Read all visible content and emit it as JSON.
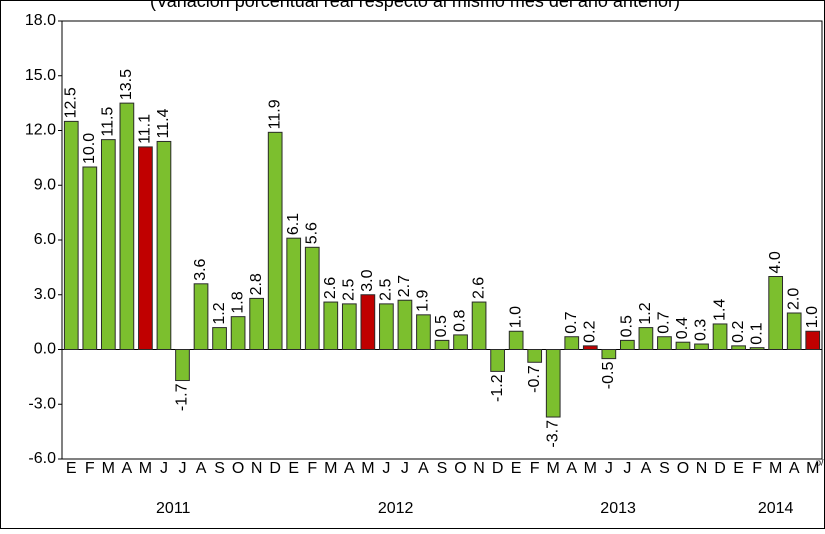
{
  "chart_data": {
    "type": "bar",
    "title": "(Variación porcentual real respecto al mismo mes del año anterior)",
    "categories": [
      "E",
      "F",
      "M",
      "A",
      "M",
      "J",
      "J",
      "A",
      "S",
      "O",
      "N",
      "D",
      "E",
      "F",
      "M",
      "A",
      "M",
      "J",
      "J",
      "A",
      "S",
      "O",
      "N",
      "D",
      "E",
      "F",
      "M",
      "A",
      "M",
      "J",
      "J",
      "A",
      "S",
      "O",
      "N",
      "D",
      "E",
      "F",
      "M",
      "A",
      "M"
    ],
    "years": [
      "2011",
      "2012",
      "2013",
      "2014"
    ],
    "footnote_marker": "p/",
    "values": [
      12.5,
      10.0,
      11.5,
      13.5,
      11.1,
      11.4,
      -1.7,
      3.6,
      1.2,
      1.8,
      2.8,
      11.9,
      6.1,
      5.6,
      2.6,
      2.5,
      3.0,
      2.5,
      2.7,
      1.9,
      0.5,
      0.8,
      2.6,
      -1.2,
      1.0,
      -0.7,
      -3.7,
      0.7,
      0.2,
      -0.5,
      0.5,
      1.2,
      0.7,
      0.4,
      0.3,
      1.4,
      0.2,
      0.1,
      4.0,
      2.0,
      1.0
    ],
    "value_labels": [
      "12.5",
      "10.0",
      "11.5",
      "13.5",
      "11.1",
      "11.4",
      "-1.7",
      "3.6",
      "1.2",
      "1.8",
      "2.8",
      "11.9",
      "6.1",
      "5.6",
      "2.6",
      "2.5",
      "3.0",
      "2.5",
      "2.7",
      "1.9",
      "0.5",
      "0.8",
      "2.6",
      "-1.2",
      "1.0",
      "-0.7",
      "-3.7",
      "0.7",
      "0.2",
      "-0.5",
      "0.5",
      "1.2",
      "0.7",
      "0.4",
      "0.3",
      "1.4",
      "0.2",
      "0.1",
      "4.0",
      "2.0",
      "1.0"
    ],
    "colors": [
      "#7cbf2e",
      "#7cbf2e",
      "#7cbf2e",
      "#7cbf2e",
      "#c00000",
      "#7cbf2e",
      "#7cbf2e",
      "#7cbf2e",
      "#7cbf2e",
      "#7cbf2e",
      "#7cbf2e",
      "#7cbf2e",
      "#7cbf2e",
      "#7cbf2e",
      "#7cbf2e",
      "#7cbf2e",
      "#c00000",
      "#7cbf2e",
      "#7cbf2e",
      "#7cbf2e",
      "#7cbf2e",
      "#7cbf2e",
      "#7cbf2e",
      "#7cbf2e",
      "#7cbf2e",
      "#7cbf2e",
      "#7cbf2e",
      "#7cbf2e",
      "#c00000",
      "#7cbf2e",
      "#7cbf2e",
      "#7cbf2e",
      "#7cbf2e",
      "#7cbf2e",
      "#7cbf2e",
      "#7cbf2e",
      "#7cbf2e",
      "#7cbf2e",
      "#7cbf2e",
      "#7cbf2e",
      "#c00000"
    ],
    "ylim": [
      -6,
      18
    ],
    "yticks": [
      {
        "value": -6,
        "label": "-6.0"
      },
      {
        "value": -3,
        "label": "-3.0"
      },
      {
        "value": 0,
        "label": "0.0"
      },
      {
        "value": 3,
        "label": "3.0"
      },
      {
        "value": 6,
        "label": "6.0"
      },
      {
        "value": 9,
        "label": "9.0"
      },
      {
        "value": 12,
        "label": "12.0"
      },
      {
        "value": 15,
        "label": "15.0"
      },
      {
        "value": 18,
        "label": "18.0"
      }
    ]
  }
}
